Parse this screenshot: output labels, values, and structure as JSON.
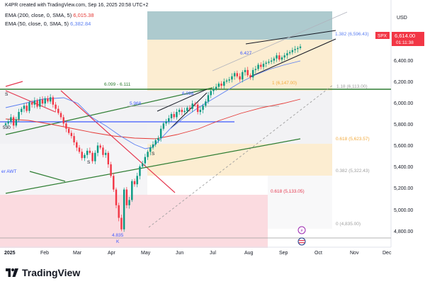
{
  "header": {
    "text": "K4PR created with TradingView.com, Sep 16, 2025 20:58 UTC+2"
  },
  "legend": [
    {
      "label": "EMA (200, close, 0, SMA, 5)",
      "value": "6,015.38",
      "color": "#e53935"
    },
    {
      "label": "EMA (50, close, 0, SMA, 5)",
      "value": "6,382.84",
      "color": "#5b7ff1"
    }
  ],
  "currency": "USD",
  "symbol_tag": {
    "symbol": "SPX",
    "price": "6,614.00",
    "countdown": "01:11:38",
    "color": "#f23645"
  },
  "brand": "TradingView",
  "colors": {
    "up": "#089981",
    "down": "#f23645",
    "ema200": "#e53935",
    "ema50": "#5b7ff1",
    "trend_green": "#2e7d32",
    "trend_red": "#e53950",
    "fib_teal": "#5f9ea0",
    "fib_orange": "#f7d9a8",
    "fib_grey": "#e9e9ee",
    "fib_pink": "#f6c9cf"
  },
  "chart_data": {
    "type": "candlestick",
    "symbol": "SPX",
    "y_axis": {
      "min": 4700,
      "max": 6950,
      "ticks": [
        "4,800.00",
        "5,000.00",
        "5,200.00",
        "5,400.00",
        "5,600.00",
        "5,800.00",
        "6,000.00",
        "6,200.00",
        "6,400.00"
      ]
    },
    "x_axis": {
      "ticks": [
        "2025",
        "Feb",
        "Mar",
        "Apr",
        "May",
        "Jun",
        "Jul",
        "Aug",
        "Sep",
        "Oct",
        "Nov",
        "Dec"
      ]
    },
    "closes": [
      5880,
      5900,
      5940,
      5860,
      5920,
      5990,
      6020,
      6050,
      6000,
      6080,
      6060,
      6100,
      6040,
      6110,
      6070,
      6120,
      6090,
      6130,
      6060,
      6020,
      5980,
      5940,
      5880,
      5830,
      5790,
      5760,
      5700,
      5650,
      5610,
      5550,
      5580,
      5620,
      5600,
      5520,
      5600,
      5670,
      5650,
      5580,
      5600,
      5490,
      5380,
      5250,
      5100,
      4980,
      4870,
      5250,
      5100,
      5150,
      5330,
      5300,
      5380,
      5470,
      5500,
      5560,
      5610,
      5650,
      5680,
      5720,
      5740,
      5830,
      5880,
      5900,
      5930,
      5970,
      5940,
      5990,
      6010,
      5990,
      6000,
      6030,
      6020,
      6070,
      6060,
      5990,
      6010,
      6050,
      6090,
      6150,
      6190,
      6210,
      6230,
      6260,
      6240,
      6280,
      6290,
      6300,
      6330,
      6360,
      6330,
      6300,
      6370,
      6390,
      6340,
      6320,
      6390,
      6400,
      6440,
      6420,
      6450,
      6460,
      6470,
      6480,
      6500,
      6530,
      6490,
      6510,
      6530,
      6550,
      6560,
      6580,
      6590,
      6600,
      6614
    ],
    "annotations": [
      {
        "text": "6.099 - 6.111"
      },
      {
        "text": "5.968"
      },
      {
        "text": "6.098"
      },
      {
        "text": "6.427"
      },
      {
        "text": "1.382 (6,596.43)"
      },
      {
        "text": "1 (6,147.00)"
      },
      {
        "text": "1.18 (6,113.00)"
      },
      {
        "text": "0.618 (5,623.57)"
      },
      {
        "text": "0.382 (5,322.43)"
      },
      {
        "text": "0.618 (5,133.05)"
      },
      {
        "text": "0 (4,835.00)"
      },
      {
        "text": "4.835"
      },
      {
        "text": "K"
      },
      {
        "text": "S"
      },
      {
        "text": "S"
      },
      {
        "text": "S"
      },
      {
        "text": "530"
      },
      {
        "text": "er AWT"
      }
    ]
  }
}
